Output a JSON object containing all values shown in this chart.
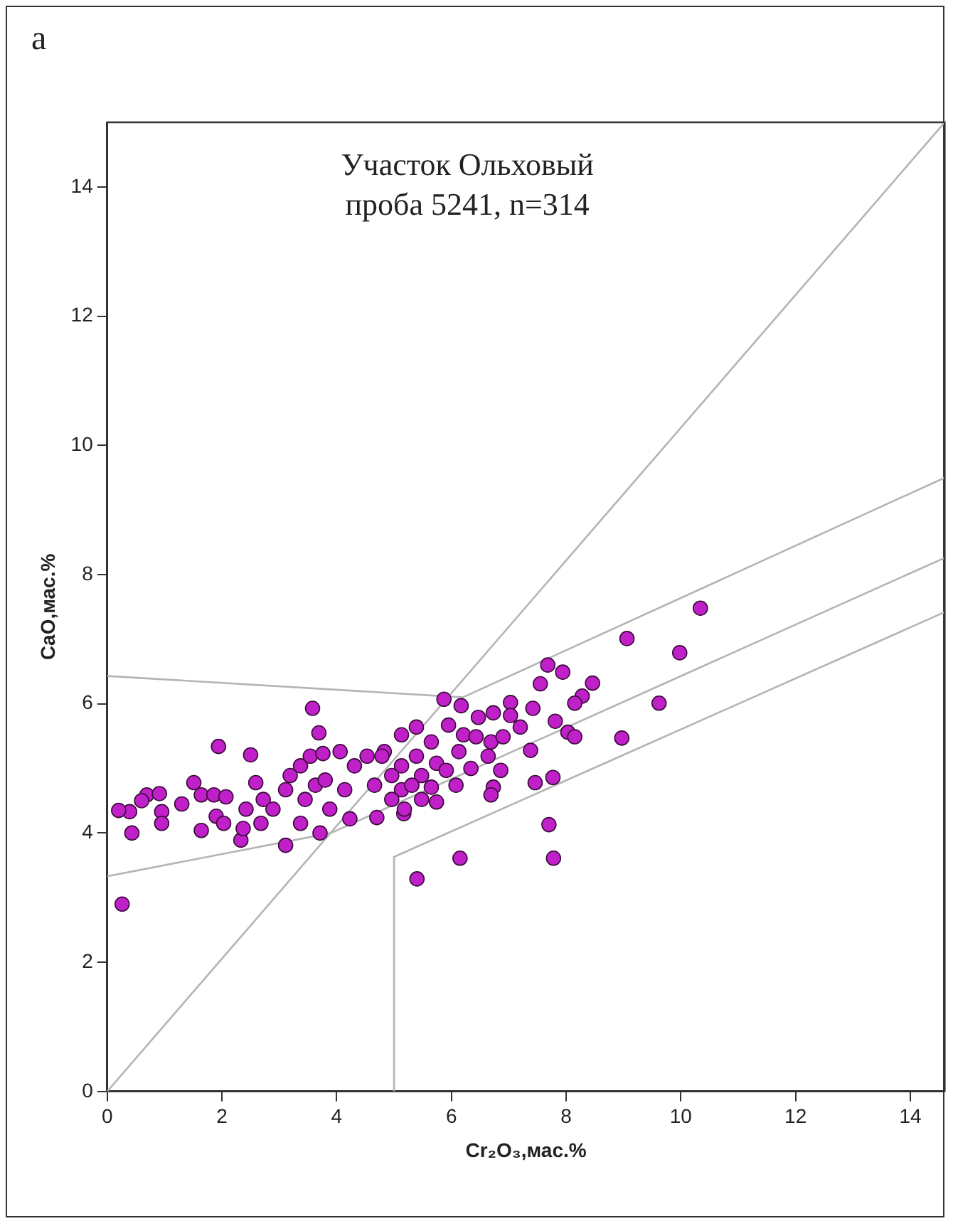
{
  "chart_data": {
    "type": "scatter",
    "xlabel": "Cr₂O₃,мас.%",
    "ylabel": "CaO,мас.%",
    "annotations": [
      "а",
      "Участок Ольховый\nпроба 5241, n=314"
    ],
    "xlim": [
      0,
      14.6
    ],
    "ylim": [
      0,
      15
    ],
    "xticks": [
      0,
      2,
      4,
      6,
      8,
      10,
      12,
      14
    ],
    "yticks": [
      0,
      2,
      4,
      6,
      8,
      10,
      12,
      14
    ],
    "grid": false,
    "legend": false,
    "marker": "circle",
    "series": [
      {
        "color": "#c020c8",
        "x": [
          3.58,
          3.69,
          1.94,
          2.5,
          0.43,
          3.11,
          4.7,
          2.33,
          0.39,
          0.69,
          0.91,
          0.95,
          0.95,
          1.3,
          1.51,
          1.64,
          1.64,
          1.86,
          1.9,
          2.07,
          2.03,
          2.37,
          2.42,
          2.59,
          2.72,
          2.89,
          3.11,
          3.19,
          3.37,
          3.45,
          3.63,
          3.54,
          3.76,
          3.8,
          3.88,
          4.06,
          4.14,
          4.31,
          4.53,
          4.66,
          4.83,
          4.23,
          2.68,
          3.37,
          3.71,
          0.26,
          5.4,
          6.15,
          7.7,
          7.78,
          5.17,
          9.06,
          9.62,
          7.68,
          7.94,
          7.55,
          8.46,
          8.28,
          8.15,
          8.97,
          7.81,
          8.03,
          8.15,
          5.87,
          6.17,
          7.03,
          7.42,
          7.2,
          7.38,
          7.46,
          7.77,
          6.73,
          6.69,
          5.13,
          5.39,
          5.65,
          5.95,
          6.21,
          6.47,
          6.73,
          7.03,
          6.43,
          6.69,
          6.9,
          6.64,
          6.13,
          5.74,
          5.39,
          5.13,
          5.91,
          6.34,
          6.86,
          5.48,
          4.96,
          4.79,
          5.13,
          5.48,
          5.74,
          5.18,
          4.96,
          5.31,
          5.65,
          6.08,
          10.34,
          9.98,
          0.6,
          0.2
        ],
        "values": [
          5.93,
          5.55,
          5.34,
          5.21,
          4.0,
          3.81,
          4.24,
          3.89,
          4.33,
          4.59,
          4.61,
          4.33,
          4.15,
          4.45,
          4.78,
          4.59,
          4.04,
          4.59,
          4.26,
          4.56,
          4.15,
          4.07,
          4.37,
          4.78,
          4.52,
          4.37,
          4.67,
          4.89,
          5.04,
          4.52,
          4.74,
          5.19,
          5.23,
          4.82,
          4.37,
          5.26,
          4.67,
          5.04,
          5.19,
          4.74,
          5.26,
          4.22,
          4.15,
          4.15,
          4.0,
          2.9,
          3.29,
          3.61,
          4.13,
          3.61,
          4.3,
          7.01,
          6.01,
          6.6,
          6.49,
          6.31,
          6.32,
          6.12,
          6.01,
          5.47,
          5.73,
          5.56,
          5.49,
          6.07,
          5.97,
          6.02,
          5.93,
          5.64,
          5.28,
          4.78,
          4.86,
          4.71,
          4.59,
          5.52,
          5.64,
          5.41,
          5.67,
          5.52,
          5.79,
          5.86,
          5.82,
          5.49,
          5.41,
          5.49,
          5.19,
          5.26,
          5.08,
          5.19,
          5.04,
          4.97,
          5.0,
          4.97,
          4.89,
          4.89,
          5.19,
          4.67,
          4.52,
          4.48,
          4.37,
          4.52,
          4.74,
          4.71,
          4.74,
          7.48,
          6.79,
          4.5,
          4.35
        ]
      },
      {
        "type": "line",
        "marker": "none",
        "color": "#b4b4b4",
        "x": [
          0,
          14.6
        ],
        "values": [
          0,
          15
        ]
      },
      {
        "type": "line",
        "marker": "none",
        "color": "#b4b4b4",
        "x": [
          0,
          6.2,
          14.6
        ],
        "values": [
          6.43,
          6.1,
          9.5
        ]
      },
      {
        "type": "line",
        "marker": "none",
        "color": "#b4b4b4",
        "x": [
          0,
          3.9,
          14.6
        ],
        "values": [
          3.33,
          4.0,
          8.26
        ]
      },
      {
        "type": "line",
        "marker": "none",
        "color": "#b4b4b4",
        "x": [
          5,
          5,
          14.6
        ],
        "values": [
          0,
          3.63,
          7.42
        ]
      }
    ]
  }
}
